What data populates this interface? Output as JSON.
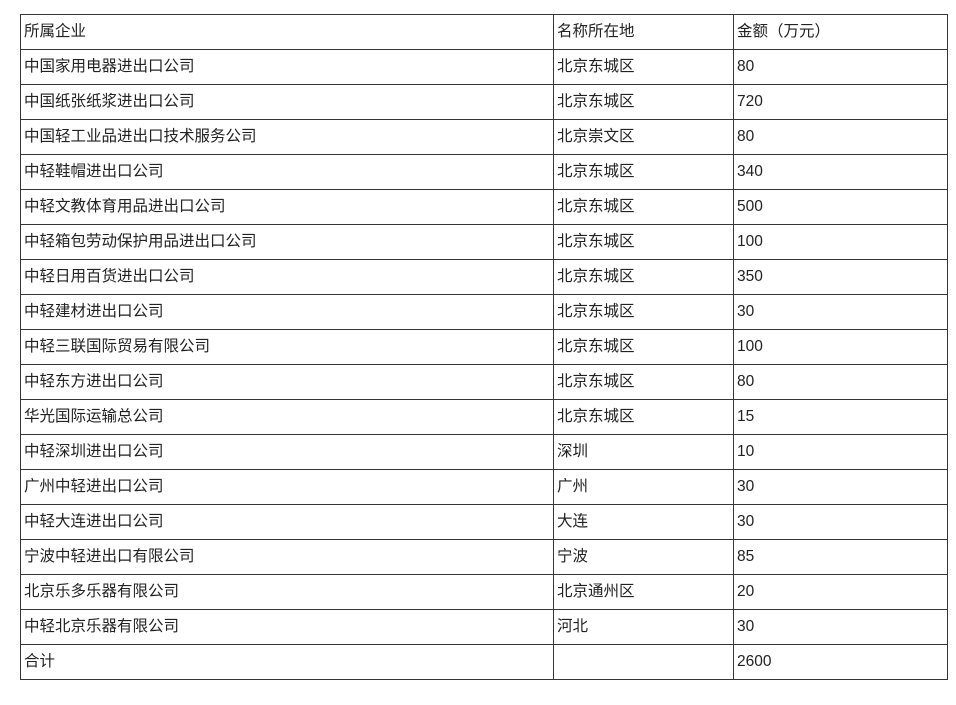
{
  "colors": {
    "border": "#363636",
    "text": "#222222",
    "background": "#ffffff"
  },
  "table": {
    "columns": [
      {
        "key": "company",
        "label": "所属企业"
      },
      {
        "key": "location",
        "label": "名称所在地"
      },
      {
        "key": "amount",
        "label": "金额（万元）"
      }
    ],
    "rows": [
      {
        "company": "中国家用电器进出口公司",
        "location": "北京东城区",
        "amount": "80"
      },
      {
        "company": "中国纸张纸浆进出口公司",
        "location": "北京东城区",
        "amount": "720"
      },
      {
        "company": "中国轻工业品进出口技术服务公司",
        "location": "北京崇文区",
        "amount": "80"
      },
      {
        "company": "中轻鞋帽进出口公司",
        "location": "北京东城区",
        "amount": "340"
      },
      {
        "company": "中轻文教体育用品进出口公司",
        "location": "北京东城区",
        "amount": "500"
      },
      {
        "company": "中轻箱包劳动保护用品进出口公司",
        "location": "北京东城区",
        "amount": "100"
      },
      {
        "company": "中轻日用百货进出口公司",
        "location": "北京东城区",
        "amount": "350"
      },
      {
        "company": "中轻建材进出口公司",
        "location": "北京东城区",
        "amount": "30"
      },
      {
        "company": "中轻三联国际贸易有限公司",
        "location": "北京东城区",
        "amount": "100"
      },
      {
        "company": "中轻东方进出口公司",
        "location": "北京东城区",
        "amount": "80"
      },
      {
        "company": "华光国际运输总公司",
        "location": "北京东城区",
        "amount": "15"
      },
      {
        "company": "中轻深圳进出口公司",
        "location": "深圳",
        "amount": "10"
      },
      {
        "company": "广州中轻进出口公司",
        "location": "广州",
        "amount": "30"
      },
      {
        "company": "中轻大连进出口公司",
        "location": "大连",
        "amount": "30"
      },
      {
        "company": "宁波中轻进出口有限公司",
        "location": "宁波",
        "amount": "85"
      },
      {
        "company": "北京乐多乐器有限公司",
        "location": "北京通州区",
        "amount": "20"
      },
      {
        "company": "中轻北京乐器有限公司",
        "location": "河北",
        "amount": "30"
      }
    ],
    "total_row": {
      "company": "合计",
      "location": "",
      "amount": "2600"
    }
  }
}
